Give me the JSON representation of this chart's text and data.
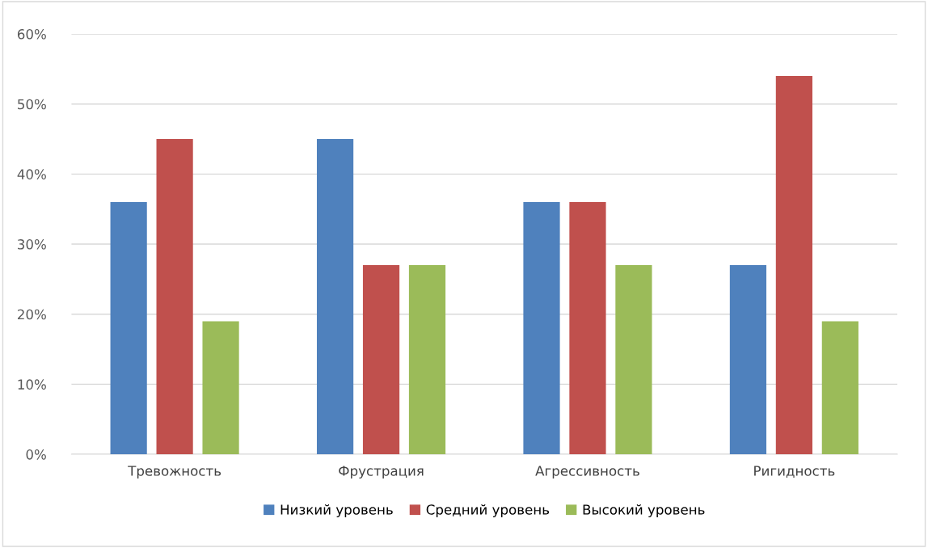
{
  "chart_data": {
    "type": "bar",
    "categories": [
      "Тревожность",
      "Фрустрация",
      "Агрессивность",
      "Ригидность"
    ],
    "series": [
      {
        "name": "Низкий уровень",
        "color": "#4f81bd",
        "values": [
          36,
          45,
          36,
          27
        ]
      },
      {
        "name": "Средний уровень",
        "color": "#c0504d",
        "values": [
          45,
          27,
          36,
          54
        ]
      },
      {
        "name": "Высокий уровень",
        "color": "#9bbb59",
        "values": [
          19,
          27,
          27,
          19
        ]
      }
    ],
    "ylim": [
      0,
      60
    ],
    "yticks": [
      {
        "value": 0,
        "label": "0%"
      },
      {
        "value": 10,
        "label": "10%"
      },
      {
        "value": 20,
        "label": "20%"
      },
      {
        "value": 30,
        "label": "30%"
      },
      {
        "value": 40,
        "label": "40%"
      },
      {
        "value": 50,
        "label": "50%"
      },
      {
        "value": 60,
        "label": "60%"
      }
    ],
    "grid": "y",
    "legend": "bottom"
  }
}
